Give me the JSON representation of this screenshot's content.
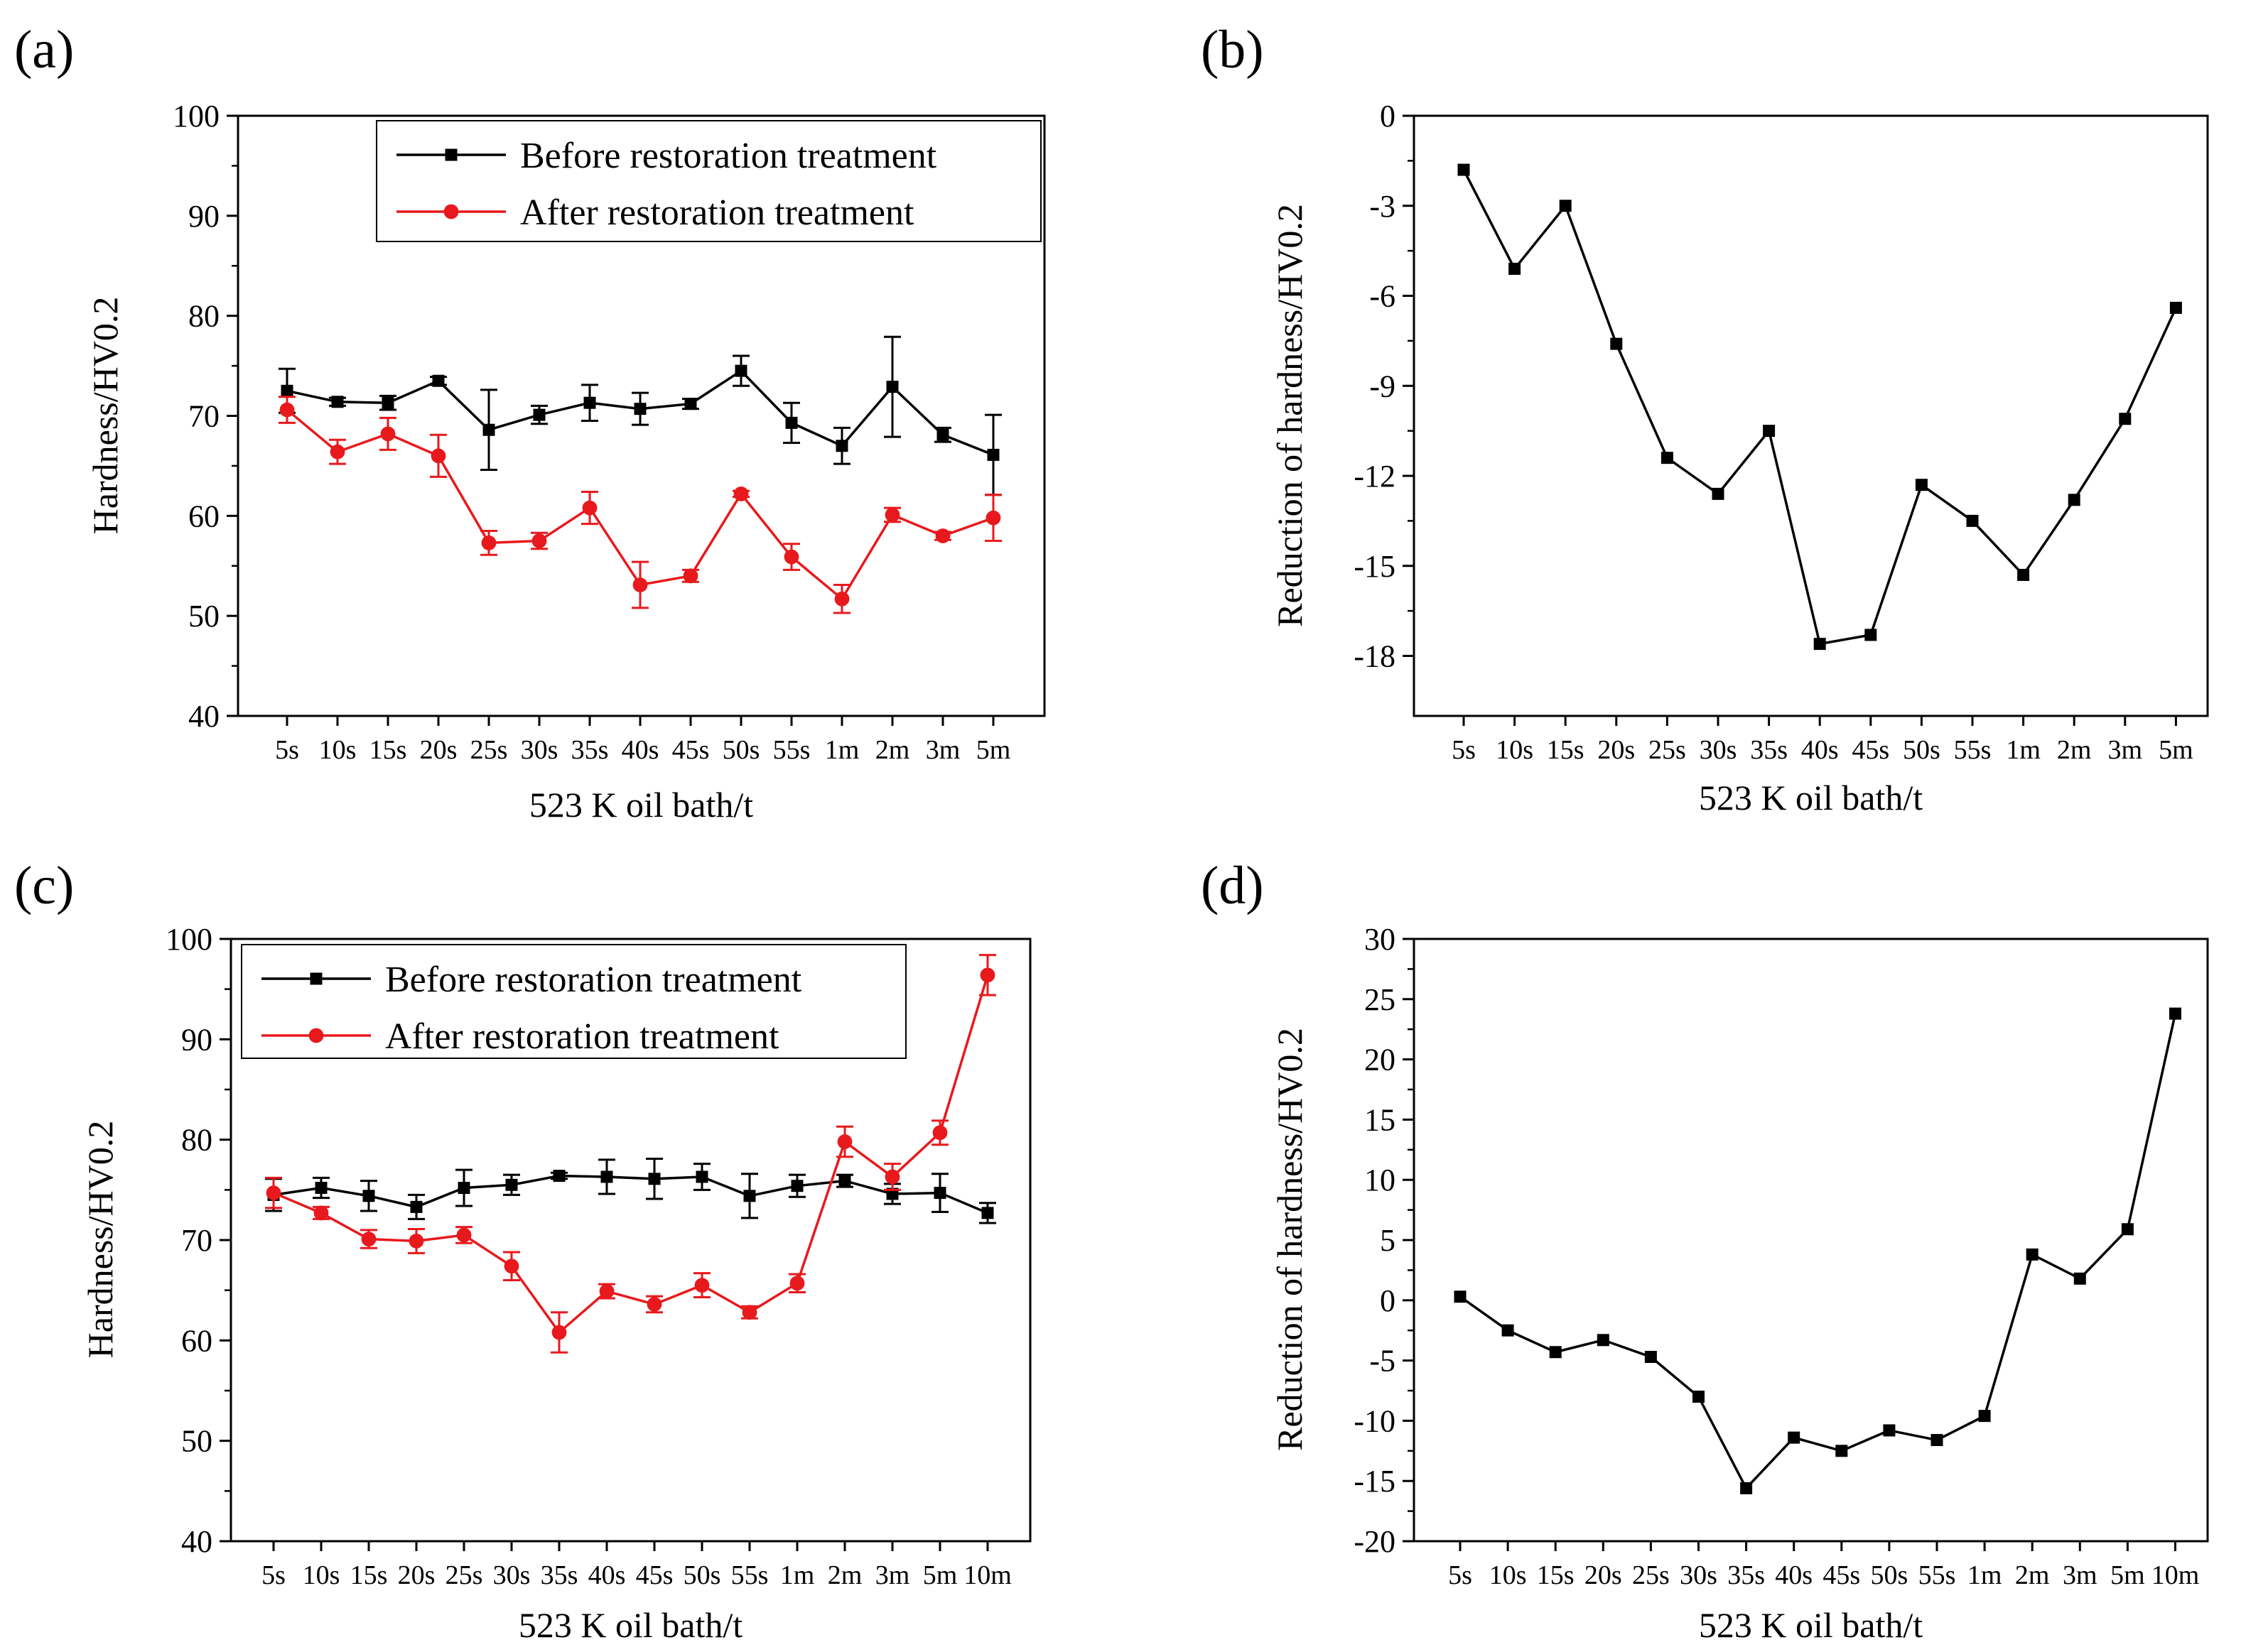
{
  "colors": {
    "before": "#000000",
    "after": "#e8191c",
    "reduction": "#000000",
    "axis": "#000000"
  },
  "chart_data": [
    {
      "id": "a",
      "label": "(a)",
      "type": "line",
      "xlabel": "523 K oil bath/t",
      "ylabel": "Hardness/HV0.2",
      "categories": [
        "5s",
        "10s",
        "15s",
        "20s",
        "25s",
        "30s",
        "35s",
        "40s",
        "45s",
        "50s",
        "55s",
        "1m",
        "2m",
        "3m",
        "5m"
      ],
      "ylim": [
        40,
        100
      ],
      "yticks": [
        "40",
        "50",
        "60",
        "70",
        "80",
        "90",
        "100"
      ],
      "legend": {
        "position": "top-right"
      },
      "series": [
        {
          "name": "Before restoration treatment",
          "marker": "square",
          "color": "#000000",
          "values": [
            72.5,
            71.4,
            71.3,
            73.5,
            68.6,
            70.1,
            71.3,
            70.7,
            71.2,
            74.5,
            69.3,
            67.0,
            72.9,
            68.1,
            66.1
          ],
          "errors": [
            2.2,
            0.4,
            0.7,
            0.4,
            4.0,
            0.9,
            1.8,
            1.6,
            0.5,
            1.5,
            2.0,
            1.8,
            5.0,
            0.7,
            4.0
          ]
        },
        {
          "name": "After restoration treatment",
          "marker": "circle",
          "color": "#e8191c",
          "values": [
            70.6,
            66.4,
            68.2,
            66.0,
            57.3,
            57.5,
            60.8,
            53.1,
            54.0,
            62.2,
            55.9,
            51.7,
            60.1,
            58.0,
            59.8
          ],
          "errors": [
            1.3,
            1.2,
            1.6,
            2.1,
            1.2,
            0.8,
            1.6,
            2.3,
            0.6,
            0.3,
            1.3,
            1.4,
            0.7,
            0.4,
            2.3
          ]
        }
      ]
    },
    {
      "id": "b",
      "label": "(b)",
      "type": "line",
      "xlabel": "523 K oil bath/t",
      "ylabel": "Reduction of hardness/HV0.2",
      "categories": [
        "5s",
        "10s",
        "15s",
        "20s",
        "25s",
        "30s",
        "35s",
        "40s",
        "45s",
        "50s",
        "55s",
        "1m",
        "2m",
        "3m",
        "5m"
      ],
      "ylim": [
        -20,
        0
      ],
      "yticks": [
        "-18",
        "-15",
        "-12",
        "-9",
        "-6",
        "-3",
        "0"
      ],
      "series": [
        {
          "name": "Reduction",
          "marker": "square",
          "color": "#000000",
          "values": [
            -1.8,
            -5.1,
            -3.0,
            -7.6,
            -11.4,
            -12.6,
            -10.5,
            -17.6,
            -17.3,
            -12.3,
            -13.5,
            -15.3,
            -12.8,
            -10.1,
            -6.4
          ]
        }
      ]
    },
    {
      "id": "c",
      "label": "(c)",
      "type": "line",
      "xlabel": "523 K oil bath/t",
      "ylabel": "Hardness/HV0.2",
      "categories": [
        "5s",
        "10s",
        "15s",
        "20s",
        "25s",
        "30s",
        "35s",
        "40s",
        "45s",
        "50s",
        "55s",
        "1m",
        "2m",
        "3m",
        "5m",
        "10m"
      ],
      "ylim": [
        40,
        100
      ],
      "yticks": [
        "40",
        "50",
        "60",
        "70",
        "80",
        "90",
        "100"
      ],
      "legend": {
        "position": "top-left"
      },
      "series": [
        {
          "name": "Before restoration treatment",
          "marker": "square",
          "color": "#000000",
          "values": [
            74.5,
            75.2,
            74.4,
            73.3,
            75.2,
            75.5,
            76.4,
            76.3,
            76.1,
            76.3,
            74.4,
            75.4,
            75.9,
            74.6,
            74.7,
            72.7
          ],
          "errors": [
            1.6,
            1.0,
            1.5,
            1.2,
            1.8,
            1.0,
            0.3,
            1.7,
            2.0,
            1.3,
            2.2,
            1.1,
            0.6,
            1.0,
            1.9,
            1.0
          ]
        },
        {
          "name": "After restoration treatment",
          "marker": "circle",
          "color": "#e8191c",
          "values": [
            74.7,
            72.7,
            70.1,
            69.9,
            70.5,
            67.4,
            60.8,
            64.9,
            63.6,
            65.5,
            62.8,
            65.7,
            79.8,
            76.3,
            80.7,
            96.4
          ],
          "errors": [
            1.5,
            0.6,
            0.9,
            1.2,
            0.8,
            1.4,
            2.0,
            0.7,
            0.8,
            1.2,
            0.6,
            0.9,
            1.5,
            1.3,
            1.2,
            2.0
          ]
        }
      ]
    },
    {
      "id": "d",
      "label": "(d)",
      "type": "line",
      "xlabel": "523 K oil bath/t",
      "ylabel": "Reduction of hardness/HV0.2",
      "categories": [
        "5s",
        "10s",
        "15s",
        "20s",
        "25s",
        "30s",
        "35s",
        "40s",
        "45s",
        "50s",
        "55s",
        "1m",
        "2m",
        "3m",
        "5m",
        "10m"
      ],
      "ylim": [
        -20,
        30
      ],
      "yticks": [
        "-20",
        "-15",
        "-10",
        "-5",
        "0",
        "5",
        "10",
        "15",
        "20",
        "25",
        "30"
      ],
      "series": [
        {
          "name": "Reduction",
          "marker": "square",
          "color": "#000000",
          "values": [
            0.3,
            -2.5,
            -4.3,
            -3.3,
            -4.7,
            -8.0,
            -15.6,
            -11.4,
            -12.5,
            -10.8,
            -11.6,
            -9.6,
            3.8,
            1.8,
            5.9,
            23.8
          ]
        }
      ]
    }
  ]
}
